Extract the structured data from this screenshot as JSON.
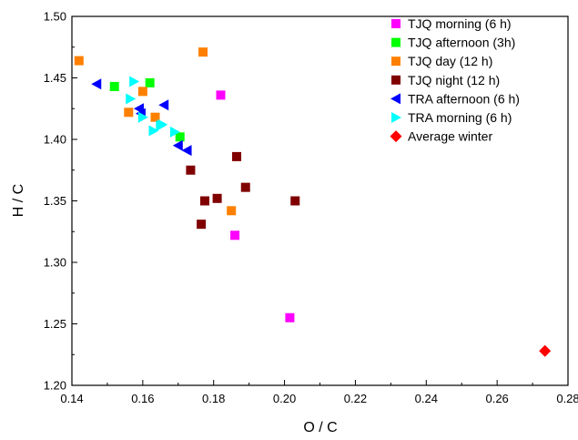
{
  "chart_data": {
    "type": "scatter",
    "title": "",
    "xlabel": "O / C",
    "ylabel": "H / C",
    "xlim": [
      0.14,
      0.28
    ],
    "ylim": [
      1.2,
      1.5
    ],
    "xticks": [
      "0.14",
      "0.16",
      "0.18",
      "0.20",
      "0.22",
      "0.24",
      "0.26",
      "0.28"
    ],
    "yticks": [
      "1.20",
      "1.25",
      "1.30",
      "1.35",
      "1.40",
      "1.45",
      "1.50"
    ],
    "grid": false,
    "legend_position": "top-right",
    "series": [
      {
        "name": "TJQ morning (6 h)",
        "marker": "square",
        "color": "#ff00ff",
        "points": [
          [
            0.182,
            1.436
          ],
          [
            0.186,
            1.322
          ],
          [
            0.2015,
            1.255
          ]
        ]
      },
      {
        "name": "TJQ afternoon (3h)",
        "marker": "square",
        "color": "#00ff00",
        "points": [
          [
            0.152,
            1.443
          ],
          [
            0.162,
            1.446
          ],
          [
            0.1705,
            1.402
          ]
        ]
      },
      {
        "name": "TJQ day (12 h)",
        "marker": "square",
        "color": "#ff8000",
        "points": [
          [
            0.142,
            1.464
          ],
          [
            0.177,
            1.471
          ],
          [
            0.16,
            1.439
          ],
          [
            0.156,
            1.422
          ],
          [
            0.1635,
            1.418
          ],
          [
            0.185,
            1.342
          ]
        ]
      },
      {
        "name": "TJQ night (12 h)",
        "marker": "square",
        "color": "#800000",
        "points": [
          [
            0.1735,
            1.375
          ],
          [
            0.1865,
            1.386
          ],
          [
            0.189,
            1.361
          ],
          [
            0.181,
            1.352
          ],
          [
            0.1775,
            1.35
          ],
          [
            0.203,
            1.35
          ],
          [
            0.1765,
            1.331
          ]
        ]
      },
      {
        "name": "TRA afternoon (6 h)",
        "marker": "triangle-left",
        "color": "#0000ff",
        "points": [
          [
            0.147,
            1.445
          ],
          [
            0.159,
            1.425
          ],
          [
            0.1595,
            1.421
          ],
          [
            0.166,
            1.428
          ],
          [
            0.17,
            1.395
          ],
          [
            0.1725,
            1.391
          ]
        ]
      },
      {
        "name": "TRA morning (6 h)",
        "marker": "triangle-right",
        "color": "#00ffff",
        "points": [
          [
            0.1575,
            1.447
          ],
          [
            0.1565,
            1.433
          ],
          [
            0.16,
            1.418
          ],
          [
            0.163,
            1.407
          ],
          [
            0.1655,
            1.412
          ],
          [
            0.169,
            1.406
          ],
          [
            0.165,
            1.411
          ]
        ]
      },
      {
        "name": "Average winter",
        "marker": "diamond",
        "color": "#ff0000",
        "points": [
          [
            0.2735,
            1.228
          ]
        ]
      }
    ]
  }
}
